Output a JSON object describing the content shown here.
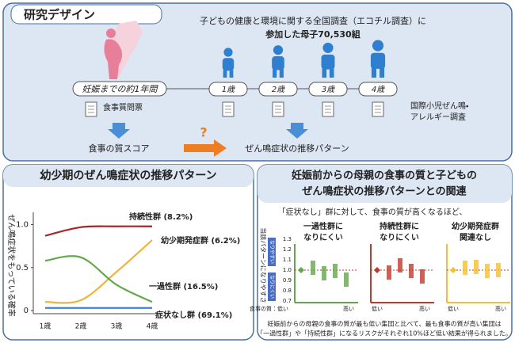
{
  "header": {
    "title": "研究デザイン",
    "study_line1": "子どもの健康と環境に関する全国調査（エコチル調査）に",
    "study_line2": "参加した母子70,530組"
  },
  "timeline": {
    "pre": "妊娠までの約1年間",
    "ages": [
      "1歳",
      "2歳",
      "3歳",
      "4歳"
    ]
  },
  "design": {
    "questionnaire": "食事質問票",
    "survey_line1": "国際小児ぜん鳴・",
    "survey_line2": "アレルギー調査",
    "diet_score": "食事の質スコア",
    "question_mark": "?",
    "outcome": "ぜん鳴症状の推移パターン"
  },
  "left_panel": {
    "title": "幼少期のぜん鳴症状の推移パターン"
  },
  "chart_data": {
    "type": "line",
    "y_label": "ぜん鳴症状をもっている確率",
    "categories": [
      "1歳",
      "2歳",
      "3歳",
      "4歳"
    ],
    "ylim": [
      0,
      1.07
    ],
    "yticks": [
      0,
      0.5,
      {
        "value": 1,
        "label": "1.0"
      }
    ],
    "series": [
      {
        "name": "持続性群 (8.2%)",
        "color": "#a8262a",
        "values": [
          0.87,
          0.97,
          0.98,
          0.98
        ]
      },
      {
        "name": "幼少期発症群 (6.2%)",
        "color": "#f2b33d",
        "values": [
          0.1,
          0.12,
          0.45,
          0.82
        ]
      },
      {
        "name": "一過性群 (16.5%)",
        "color": "#63a84a",
        "values": [
          0.58,
          0.62,
          0.3,
          0.1
        ]
      },
      {
        "name": "症状なし群 (69.1%)",
        "color": "#3d86d6",
        "values": [
          0.03,
          0.03,
          0.03,
          0.03
        ]
      }
    ]
  },
  "right_panel": {
    "title_line1": "妊娠前からの母親の食事の質と子どもの",
    "title_line2": "ぜん鳴症状の推移パターンとの関連",
    "lead": "「症状なし」群に対して、食事の質が高くなるほど、",
    "panels": [
      {
        "line1": "一過性群に",
        "line2": "なりにくい"
      },
      {
        "line1": "持続性群に",
        "line2": "なりにくい"
      },
      {
        "line1": "幼少期発症群",
        "line2": "関連なし"
      }
    ],
    "y_axis_label": "当該パターンになりやすさ",
    "y_high": "なりやすい",
    "y_low": "なりにくい",
    "y_tick_labels": [
      "1.3",
      "1.2",
      "1.1",
      "1.0",
      "0.9",
      "0.8",
      "0.7"
    ],
    "x_low_first": "食事の質：低い",
    "x_low": "低い",
    "x_high": "高い",
    "footer_line1": "妊娠前からの母親の食事の質が最も低い集団と比べて、最も食事の質が高い集団は",
    "footer_line2": "「一過性群」や「持続性群」になるリスクがそれぞれ10%ほど低い結果が得られました。"
  }
}
